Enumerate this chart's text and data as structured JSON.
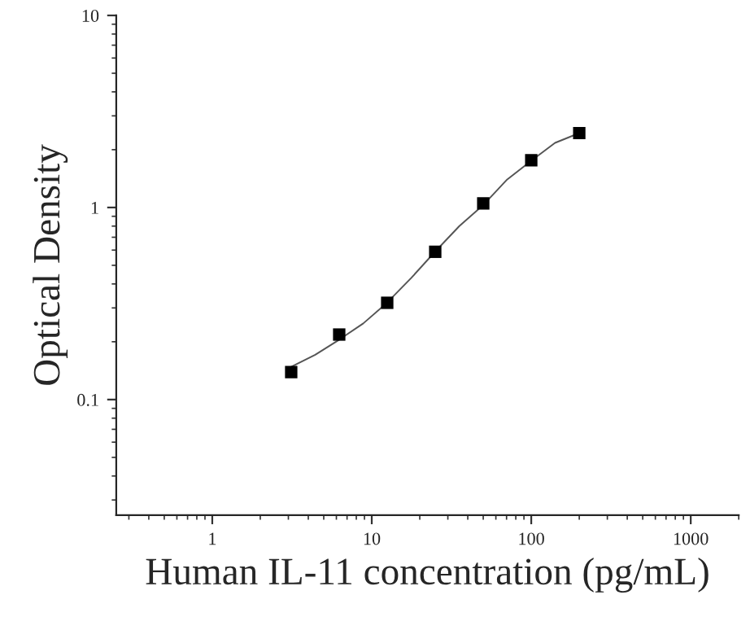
{
  "chart_data": {
    "type": "scatter",
    "xlabel": "Human IL-11 concentration (pg/mL)",
    "ylabel": "Optical Density",
    "log": "xy",
    "xlim": [
      0.25,
      2000
    ],
    "ylim": [
      0.025,
      10
    ],
    "xticks": [
      1,
      10,
      100,
      1000
    ],
    "yticks": [
      0.1,
      1,
      10
    ],
    "grid": false,
    "legend": false,
    "series": [
      {
        "color": "#000000",
        "marker": "square",
        "x": [
          3.125,
          6.25,
          12.5,
          25,
          50,
          100,
          200
        ],
        "values": [
          0.139,
          0.218,
          0.319,
          0.588,
          1.05,
          1.76,
          2.44
        ]
      },
      {
        "type": "line",
        "color": "#555555",
        "marker": "none",
        "line_style": "solid",
        "x": [
          3.125,
          4.42,
          6.25,
          8.84,
          12.5,
          17.7,
          25,
          35.4,
          50,
          70.7,
          100,
          141,
          200
        ],
        "values": [
          0.148,
          0.171,
          0.205,
          0.249,
          0.32,
          0.43,
          0.59,
          0.8,
          1.03,
          1.4,
          1.75,
          2.17,
          2.44
        ]
      }
    ]
  }
}
